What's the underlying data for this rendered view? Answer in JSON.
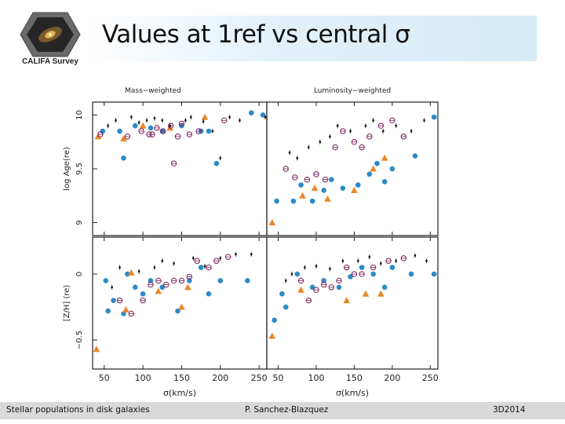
{
  "slide": {
    "title": "Values at 1ref vs central σ",
    "logo_text": "CALIFA Survey",
    "footer_left": "Stellar populations in disk galaxies",
    "footer_center": "P. Sanchez-Blazquez",
    "footer_right": "3D2014"
  },
  "colors": {
    "accent": "#d6ebf7",
    "circle": "#2e8ac6",
    "triangle": "#e8872a",
    "open": "#7a1f5c",
    "dot": "#111111"
  },
  "chart_data": [
    {
      "type": "scatter",
      "panel": "top-left",
      "title": "Mass−weighted",
      "xlabel": "",
      "ylabel": "log Age(re)",
      "xlim": [
        35,
        260
      ],
      "ylim": [
        8.88,
        10.12
      ],
      "yticks": [
        "9",
        "9.5",
        "10"
      ],
      "series": [
        {
          "name": "filled circles",
          "marker": "circle",
          "points": [
            [
              48,
              9.85
            ],
            [
              70,
              9.85
            ],
            [
              75,
              9.6
            ],
            [
              90,
              9.9
            ],
            [
              110,
              9.88
            ],
            [
              125,
              9.85
            ],
            [
              150,
              9.9
            ],
            [
              175,
              9.85
            ],
            [
              185,
              9.85
            ],
            [
              195,
              9.55
            ],
            [
              240,
              10.02
            ],
            [
              255,
              10.0
            ]
          ]
        },
        {
          "name": "triangles",
          "marker": "triangle",
          "points": [
            [
              42,
              9.8
            ],
            [
              75,
              9.78
            ],
            [
              100,
              9.9
            ],
            [
              135,
              9.88
            ],
            [
              180,
              9.98
            ]
          ]
        },
        {
          "name": "open circles",
          "marker": "open-circle",
          "points": [
            [
              45,
              9.82
            ],
            [
              80,
              9.8
            ],
            [
              98,
              9.85
            ],
            [
              108,
              9.82
            ],
            [
              112,
              9.82
            ],
            [
              118,
              9.88
            ],
            [
              126,
              9.85
            ],
            [
              136,
              9.9
            ],
            [
              145,
              9.8
            ],
            [
              150,
              9.92
            ],
            [
              160,
              9.82
            ],
            [
              172,
              9.85
            ],
            [
              205,
              9.95
            ],
            [
              140,
              9.55
            ]
          ]
        },
        {
          "name": "small dots",
          "marker": "dot",
          "points": [
            [
              55,
              9.9
            ],
            [
              65,
              9.95
            ],
            [
              85,
              9.98
            ],
            [
              95,
              9.93
            ],
            [
              105,
              9.95
            ],
            [
              115,
              9.97
            ],
            [
              125,
              9.95
            ],
            [
              135,
              9.9
            ],
            [
              155,
              9.95
            ],
            [
              162,
              9.98
            ],
            [
              178,
              9.94
            ],
            [
              190,
              9.85
            ],
            [
              200,
              9.6
            ],
            [
              212,
              9.98
            ],
            [
              225,
              9.95
            ],
            [
              258,
              9.98
            ]
          ]
        }
      ]
    },
    {
      "type": "scatter",
      "panel": "top-right",
      "title": "Luminosity−weighted",
      "xlabel": "",
      "ylabel": "",
      "xlim": [
        35,
        260
      ],
      "ylim": [
        8.88,
        10.12
      ],
      "series": [
        {
          "name": "filled circles",
          "marker": "circle",
          "points": [
            [
              48,
              9.2
            ],
            [
              70,
              9.2
            ],
            [
              80,
              9.35
            ],
            [
              95,
              9.2
            ],
            [
              110,
              9.3
            ],
            [
              120,
              9.4
            ],
            [
              135,
              9.32
            ],
            [
              155,
              9.35
            ],
            [
              170,
              9.45
            ],
            [
              180,
              9.55
            ],
            [
              190,
              9.38
            ],
            [
              200,
              9.5
            ],
            [
              230,
              9.62
            ],
            [
              255,
              9.98
            ]
          ]
        },
        {
          "name": "triangles",
          "marker": "triangle",
          "points": [
            [
              42,
              9.0
            ],
            [
              82,
              9.25
            ],
            [
              98,
              9.32
            ],
            [
              115,
              9.22
            ],
            [
              150,
              9.3
            ],
            [
              175,
              9.5
            ],
            [
              190,
              9.6
            ]
          ]
        },
        {
          "name": "open circles",
          "marker": "open-circle",
          "points": [
            [
              60,
              9.5
            ],
            [
              72,
              9.42
            ],
            [
              88,
              9.4
            ],
            [
              100,
              9.45
            ],
            [
              112,
              9.4
            ],
            [
              125,
              9.7
            ],
            [
              135,
              9.85
            ],
            [
              150,
              9.75
            ],
            [
              160,
              9.7
            ],
            [
              170,
              9.8
            ],
            [
              185,
              9.9
            ],
            [
              200,
              9.95
            ],
            [
              215,
              9.8
            ]
          ]
        },
        {
          "name": "small dots",
          "marker": "dot",
          "points": [
            [
              65,
              9.65
            ],
            [
              75,
              9.6
            ],
            [
              90,
              9.7
            ],
            [
              105,
              9.75
            ],
            [
              118,
              9.8
            ],
            [
              128,
              9.9
            ],
            [
              145,
              9.85
            ],
            [
              165,
              9.9
            ],
            [
              175,
              9.95
            ],
            [
              188,
              9.85
            ],
            [
              205,
              9.9
            ],
            [
              225,
              9.85
            ],
            [
              242,
              9.95
            ]
          ]
        }
      ]
    },
    {
      "type": "scatter",
      "panel": "bottom-left",
      "title": "",
      "xlabel": "σ(km/s)",
      "ylabel": "[Z/H] (re)",
      "xlim": [
        35,
        260
      ],
      "ylim": [
        -0.72,
        0.28
      ],
      "xticks": [
        "50",
        "100",
        "150",
        "200",
        "250"
      ],
      "yticks": [
        "−0.5",
        "0"
      ],
      "series": [
        {
          "name": "filled circles",
          "marker": "circle",
          "points": [
            [
              52,
              -0.05
            ],
            [
              55,
              -0.28
            ],
            [
              62,
              -0.2
            ],
            [
              75,
              -0.3
            ],
            [
              80,
              0.0
            ],
            [
              90,
              -0.1
            ],
            [
              100,
              -0.15
            ],
            [
              110,
              -0.05
            ],
            [
              125,
              -0.1
            ],
            [
              145,
              -0.28
            ],
            [
              160,
              -0.05
            ],
            [
              175,
              0.05
            ],
            [
              185,
              -0.15
            ],
            [
              200,
              -0.05
            ],
            [
              235,
              -0.05
            ]
          ]
        },
        {
          "name": "triangles",
          "marker": "triangle",
          "points": [
            [
              40,
              -0.57
            ],
            [
              78,
              -0.27
            ],
            [
              85,
              0.01
            ],
            [
              120,
              -0.13
            ],
            [
              150,
              -0.25
            ],
            [
              158,
              -0.1
            ]
          ]
        },
        {
          "name": "open circles",
          "marker": "open-circle",
          "points": [
            [
              70,
              -0.2
            ],
            [
              85,
              -0.3
            ],
            [
              100,
              -0.2
            ],
            [
              110,
              -0.08
            ],
            [
              120,
              -0.05
            ],
            [
              130,
              -0.08
            ],
            [
              140,
              -0.05
            ],
            [
              150,
              -0.05
            ],
            [
              160,
              -0.02
            ],
            [
              170,
              0.1
            ],
            [
              185,
              0.05
            ],
            [
              195,
              0.1
            ],
            [
              210,
              0.13
            ]
          ]
        },
        {
          "name": "small dots",
          "marker": "dot",
          "points": [
            [
              60,
              -0.1
            ],
            [
              70,
              0.05
            ],
            [
              95,
              0.02
            ],
            [
              115,
              0.05
            ],
            [
              125,
              0.1
            ],
            [
              140,
              0.08
            ],
            [
              165,
              0.12
            ],
            [
              180,
              0.06
            ],
            [
              200,
              0.12
            ],
            [
              220,
              0.15
            ],
            [
              240,
              0.15
            ]
          ]
        }
      ]
    },
    {
      "type": "scatter",
      "panel": "bottom-right",
      "title": "",
      "xlabel": "σ(km/s)",
      "ylabel": "",
      "xlim": [
        35,
        260
      ],
      "ylim": [
        -0.72,
        0.28
      ],
      "xticks": [
        "50",
        "100",
        "150",
        "200",
        "250"
      ],
      "series": [
        {
          "name": "filled circles",
          "marker": "circle",
          "points": [
            [
              45,
              -0.35
            ],
            [
              55,
              -0.15
            ],
            [
              60,
              -0.25
            ],
            [
              75,
              0.0
            ],
            [
              95,
              -0.1
            ],
            [
              110,
              -0.05
            ],
            [
              130,
              -0.1
            ],
            [
              145,
              -0.02
            ],
            [
              160,
              0.05
            ],
            [
              175,
              0.0
            ],
            [
              190,
              -0.1
            ],
            [
              200,
              0.05
            ],
            [
              225,
              0.0
            ],
            [
              255,
              0.0
            ]
          ]
        },
        {
          "name": "triangles",
          "marker": "triangle",
          "points": [
            [
              42,
              -0.47
            ],
            [
              80,
              -0.12
            ],
            [
              140,
              -0.2
            ],
            [
              165,
              -0.15
            ],
            [
              185,
              -0.15
            ]
          ]
        },
        {
          "name": "open circles",
          "marker": "open-circle",
          "points": [
            [
              80,
              -0.05
            ],
            [
              90,
              -0.2
            ],
            [
              100,
              -0.12
            ],
            [
              110,
              -0.08
            ],
            [
              120,
              -0.1
            ],
            [
              130,
              -0.05
            ],
            [
              140,
              0.05
            ],
            [
              150,
              0.0
            ],
            [
              160,
              0.0
            ],
            [
              175,
              0.05
            ],
            [
              195,
              0.1
            ],
            [
              215,
              0.12
            ]
          ]
        },
        {
          "name": "small dots",
          "marker": "dot",
          "points": [
            [
              60,
              -0.05
            ],
            [
              68,
              0.0
            ],
            [
              85,
              0.05
            ],
            [
              100,
              0.06
            ],
            [
              118,
              0.04
            ],
            [
              135,
              0.1
            ],
            [
              155,
              0.1
            ],
            [
              170,
              0.13
            ],
            [
              185,
              0.08
            ],
            [
              205,
              0.1
            ],
            [
              230,
              0.14
            ],
            [
              245,
              0.1
            ]
          ]
        }
      ]
    }
  ]
}
